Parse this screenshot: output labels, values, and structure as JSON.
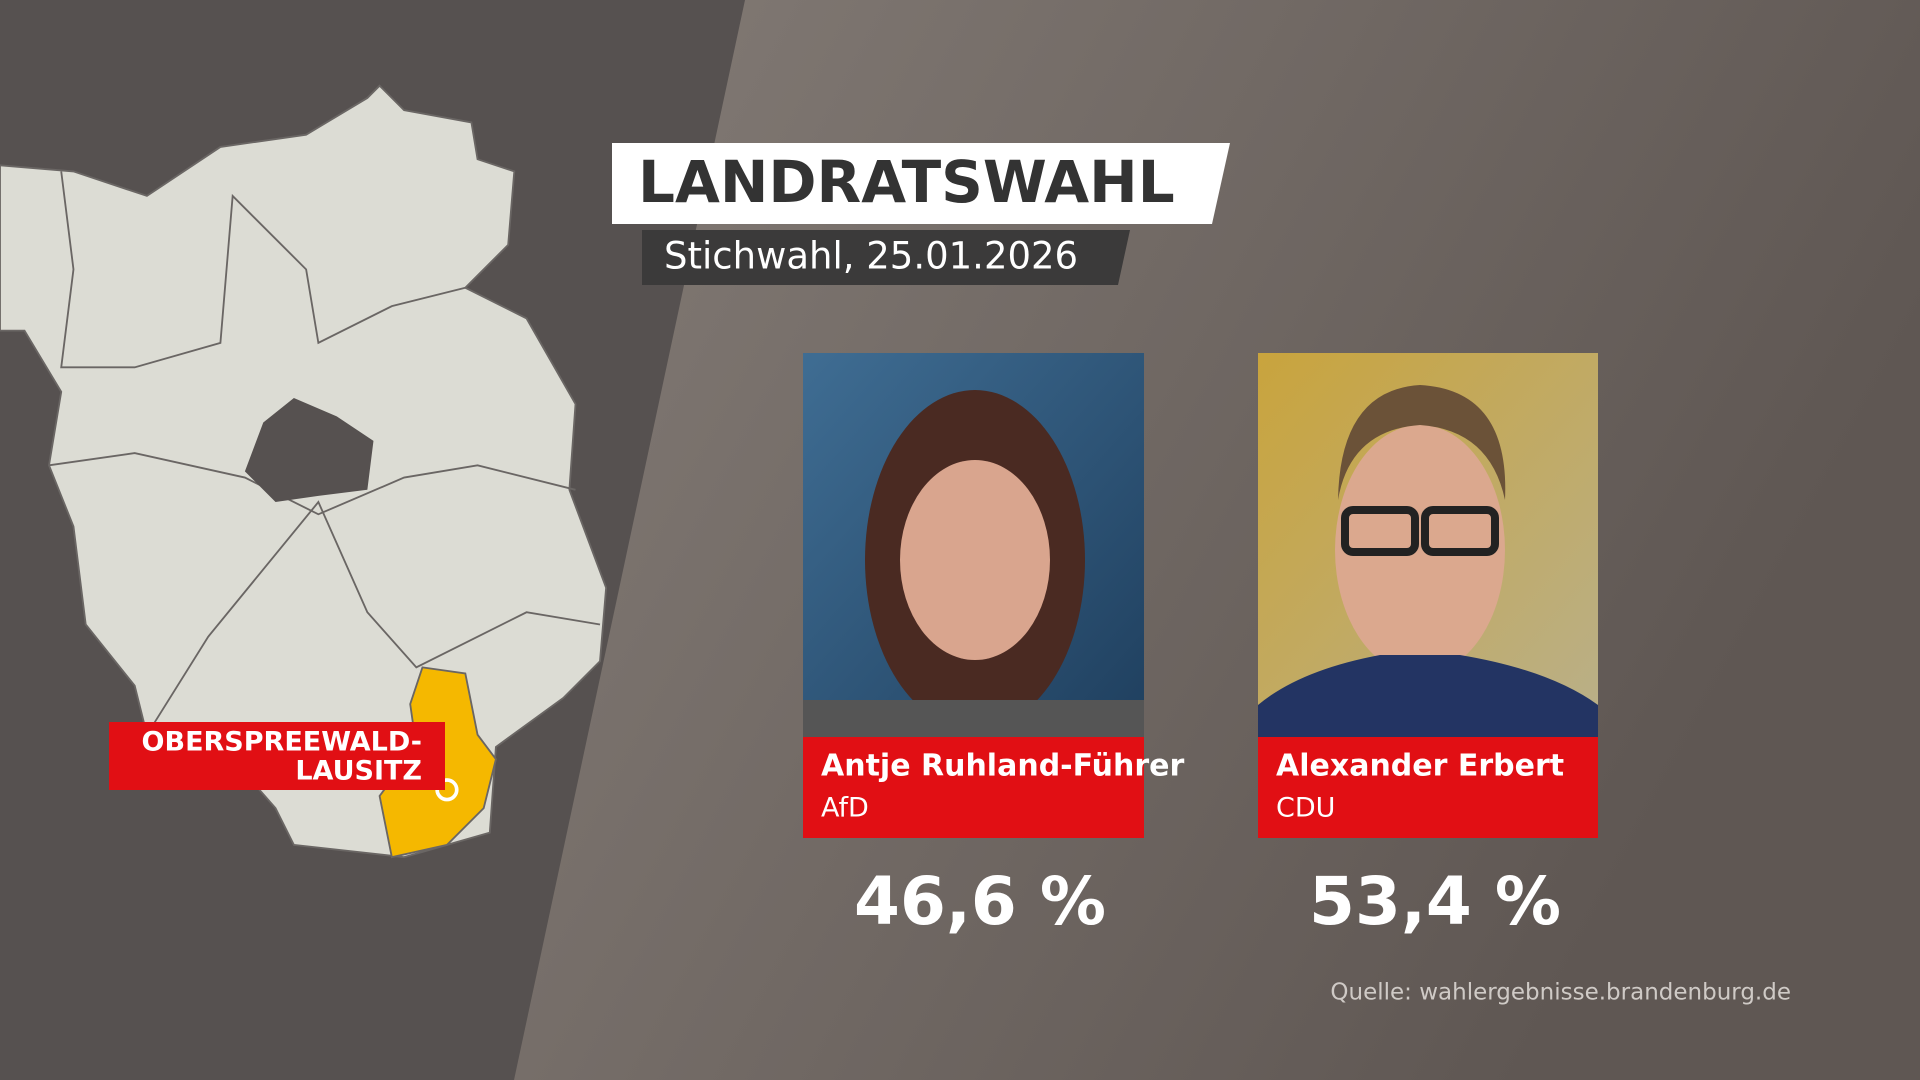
{
  "header": {
    "title": "LANDRATSWAHL",
    "subtitle": "Stichwahl, 25.01.2026"
  },
  "map": {
    "label_lines": [
      "OBERSPREEWALD-",
      "LAUSITZ"
    ]
  },
  "candidates": [
    {
      "name": "Antje Ruhland-Führer",
      "party": "AfD",
      "result": "46,6 %"
    },
    {
      "name": "Alexander Erbert",
      "party": "CDU",
      "result": "53,4 %"
    }
  ],
  "source": "Quelle: wahlergebnisse.brandenburg.de"
}
